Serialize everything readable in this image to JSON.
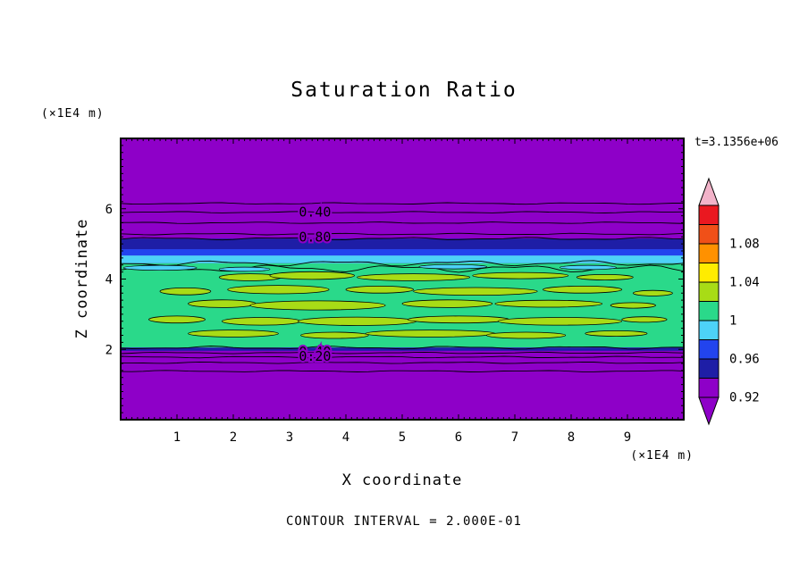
{
  "title": "Saturation Ratio",
  "annotations": {
    "time_label": "t=3.1356e+06",
    "contour_note": "CONTOUR INTERVAL = 2.000E-01",
    "y_axis_unit": "(×1E4 m)",
    "x_axis_unit": "(×1E4 m)"
  },
  "axes": {
    "x_label": "X coordinate",
    "y_label": "Z coordinate",
    "x_ticks": [
      1,
      2,
      3,
      4,
      5,
      6,
      7,
      8,
      9
    ],
    "y_ticks": [
      2,
      4,
      6
    ],
    "x_range": [
      0,
      10
    ],
    "z_range": [
      0,
      8
    ],
    "x_minor_step": 0.1,
    "y_minor_step": 0.2,
    "y_major_step": 2
  },
  "colorbar": {
    "labels": [
      "1.08",
      "1.04",
      "1",
      "0.96",
      "0.92"
    ],
    "segments": [
      "#ea1820",
      "#f05018",
      "#ff9100",
      "#ffec00",
      "#a8dc16",
      "#2ad98a",
      "#4dd2f7",
      "#2244ee",
      "#1e1ea6",
      "#8e00c8"
    ],
    "top_tip": "#f2b3c9",
    "bottom_tip": "#8e00c8"
  },
  "chart_data": {
    "type": "heatmap",
    "title": "Saturation Ratio",
    "xlabel": "X coordinate",
    "ylabel": "Z coordinate",
    "x_range": [
      0,
      10
    ],
    "z_range": [
      0,
      8
    ],
    "contour_interval": 0.2,
    "time_annotation": "t=3.1356e+06",
    "background_color": "#8e00c8",
    "blob_color": "#a8dc16",
    "cyan_patch_color": "#4dd2f7",
    "bands": [
      {
        "z0": 4.85,
        "z1": 5.15,
        "color": "#1e1ea6"
      },
      {
        "z0": 4.67,
        "z1": 4.85,
        "color": "#2244ee"
      },
      {
        "z0": 4.45,
        "z1": 4.67,
        "color": "#4dd2f7"
      },
      {
        "z0": 2.05,
        "z1": 4.45,
        "color": "#2ad98a"
      },
      {
        "z0": 1.96,
        "z1": 2.05,
        "color": "#1e1ea6"
      }
    ],
    "contour_lines": [
      {
        "z": 6.15
      },
      {
        "z": 5.9
      },
      {
        "z": 5.6
      },
      {
        "z": 5.28
      },
      {
        "z": 1.9
      },
      {
        "z": 1.78
      },
      {
        "z": 1.62
      },
      {
        "z": 1.38
      }
    ],
    "wavy_lines": [
      {
        "z": 5.15,
        "amp": 1.0
      },
      {
        "z": 4.45,
        "amp": 2.2
      },
      {
        "z": 4.3,
        "amp": 2.8
      },
      {
        "z": 2.05,
        "amp": 1.2
      }
    ],
    "contour_labels": [
      {
        "text": "0.40",
        "x": 3.45,
        "z": 5.9
      },
      {
        "text": "0.80",
        "x": 3.45,
        "z": 5.2
      },
      {
        "text": "0.40",
        "x": 3.45,
        "z": 1.93
      },
      {
        "text": "0.20",
        "x": 3.45,
        "z": 1.8
      }
    ],
    "blobs": [
      [
        1.15,
        3.65,
        0.45,
        0.1
      ],
      [
        2.3,
        4.05,
        0.55,
        0.1
      ],
      [
        3.4,
        4.1,
        0.75,
        0.11
      ],
      [
        5.2,
        4.05,
        1.0,
        0.1
      ],
      [
        7.1,
        4.1,
        0.85,
        0.09
      ],
      [
        8.6,
        4.05,
        0.5,
        0.08
      ],
      [
        2.8,
        3.7,
        0.9,
        0.12
      ],
      [
        4.6,
        3.7,
        0.6,
        0.1
      ],
      [
        6.3,
        3.65,
        1.1,
        0.11
      ],
      [
        8.2,
        3.7,
        0.7,
        0.1
      ],
      [
        9.45,
        3.6,
        0.35,
        0.08
      ],
      [
        1.8,
        3.3,
        0.6,
        0.11
      ],
      [
        3.5,
        3.25,
        1.2,
        0.13
      ],
      [
        5.8,
        3.3,
        0.8,
        0.11
      ],
      [
        7.6,
        3.3,
        0.95,
        0.1
      ],
      [
        9.1,
        3.25,
        0.4,
        0.08
      ],
      [
        1.0,
        2.85,
        0.5,
        0.1
      ],
      [
        2.5,
        2.8,
        0.7,
        0.11
      ],
      [
        4.2,
        2.8,
        1.05,
        0.12
      ],
      [
        6.0,
        2.85,
        0.9,
        0.1
      ],
      [
        7.8,
        2.8,
        1.1,
        0.11
      ],
      [
        9.3,
        2.85,
        0.4,
        0.08
      ],
      [
        2.0,
        2.45,
        0.8,
        0.1
      ],
      [
        3.8,
        2.4,
        0.6,
        0.09
      ],
      [
        5.5,
        2.45,
        1.15,
        0.1
      ],
      [
        7.2,
        2.4,
        0.7,
        0.09
      ],
      [
        8.8,
        2.45,
        0.55,
        0.08
      ]
    ],
    "cyan_patches": [
      [
        0.7,
        4.32,
        0.65,
        0.07
      ],
      [
        2.2,
        4.28,
        0.45,
        0.06
      ],
      [
        5.9,
        4.35,
        0.6,
        0.06
      ],
      [
        8.3,
        4.33,
        0.5,
        0.06
      ]
    ]
  }
}
